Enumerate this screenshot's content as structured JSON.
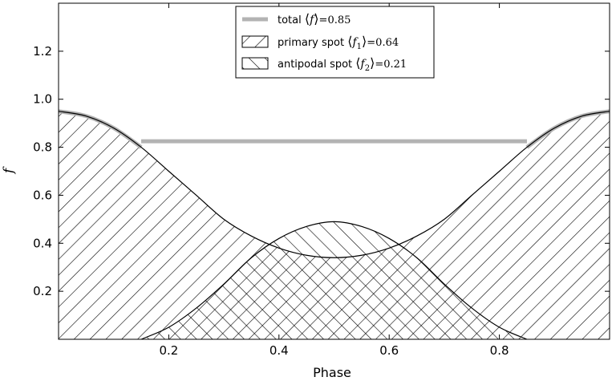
{
  "chart_data": {
    "type": "area",
    "title": "",
    "xlabel": "Phase",
    "ylabel": "f",
    "xlim": [
      0.0,
      1.0
    ],
    "ylim": [
      0.0,
      1.4
    ],
    "xticks": [
      "0.2",
      "0.4",
      "0.6",
      "0.8"
    ],
    "yticks": [
      "0.2",
      "0.4",
      "0.6",
      "0.8",
      "1.0",
      "1.2"
    ],
    "legend_position": "upper-center",
    "colors": {
      "total": "#b3b3b3",
      "hatch": "#000000",
      "background": "#ffffff"
    },
    "series": [
      {
        "name": "total",
        "legend_text": "total ⟨f⟩=0.85",
        "legend_parts": [
          "total ",
          "⟨",
          "f",
          "⟩",
          "=0.85"
        ],
        "style": "solid-line",
        "x": [
          0.0,
          0.15,
          0.85,
          1.0
        ],
        "y": [
          0.95,
          0.825,
          0.825,
          0.95
        ]
      },
      {
        "name": "primary spot",
        "legend_text": "primary spot ⟨f1⟩=0.64",
        "legend_parts": [
          "primary spot ",
          "⟨",
          "f",
          "1",
          "⟩",
          "=0.64"
        ],
        "style": "hatch-forward",
        "x": [
          0.0,
          0.05,
          0.1,
          0.15,
          0.2,
          0.25,
          0.3,
          0.35,
          0.4,
          0.45,
          0.5,
          0.55,
          0.6,
          0.65,
          0.7,
          0.75,
          0.8,
          0.85,
          0.9,
          0.95,
          1.0
        ],
        "y": [
          0.95,
          0.93,
          0.88,
          0.8,
          0.7,
          0.6,
          0.5,
          0.43,
          0.38,
          0.35,
          0.34,
          0.35,
          0.38,
          0.43,
          0.5,
          0.6,
          0.7,
          0.8,
          0.88,
          0.93,
          0.95
        ]
      },
      {
        "name": "antipodal spot",
        "legend_text": "antipodal spot ⟨f2⟩=0.21",
        "legend_parts": [
          "antipodal spot ",
          "⟨",
          "f",
          "2",
          "⟩",
          "=0.21"
        ],
        "style": "hatch-backward",
        "x": [
          0.15,
          0.2,
          0.25,
          0.3,
          0.35,
          0.4,
          0.45,
          0.5,
          0.55,
          0.6,
          0.65,
          0.7,
          0.75,
          0.8,
          0.85
        ],
        "y": [
          0.0,
          0.05,
          0.13,
          0.23,
          0.34,
          0.42,
          0.47,
          0.49,
          0.47,
          0.42,
          0.34,
          0.23,
          0.13,
          0.05,
          0.0
        ]
      }
    ]
  }
}
